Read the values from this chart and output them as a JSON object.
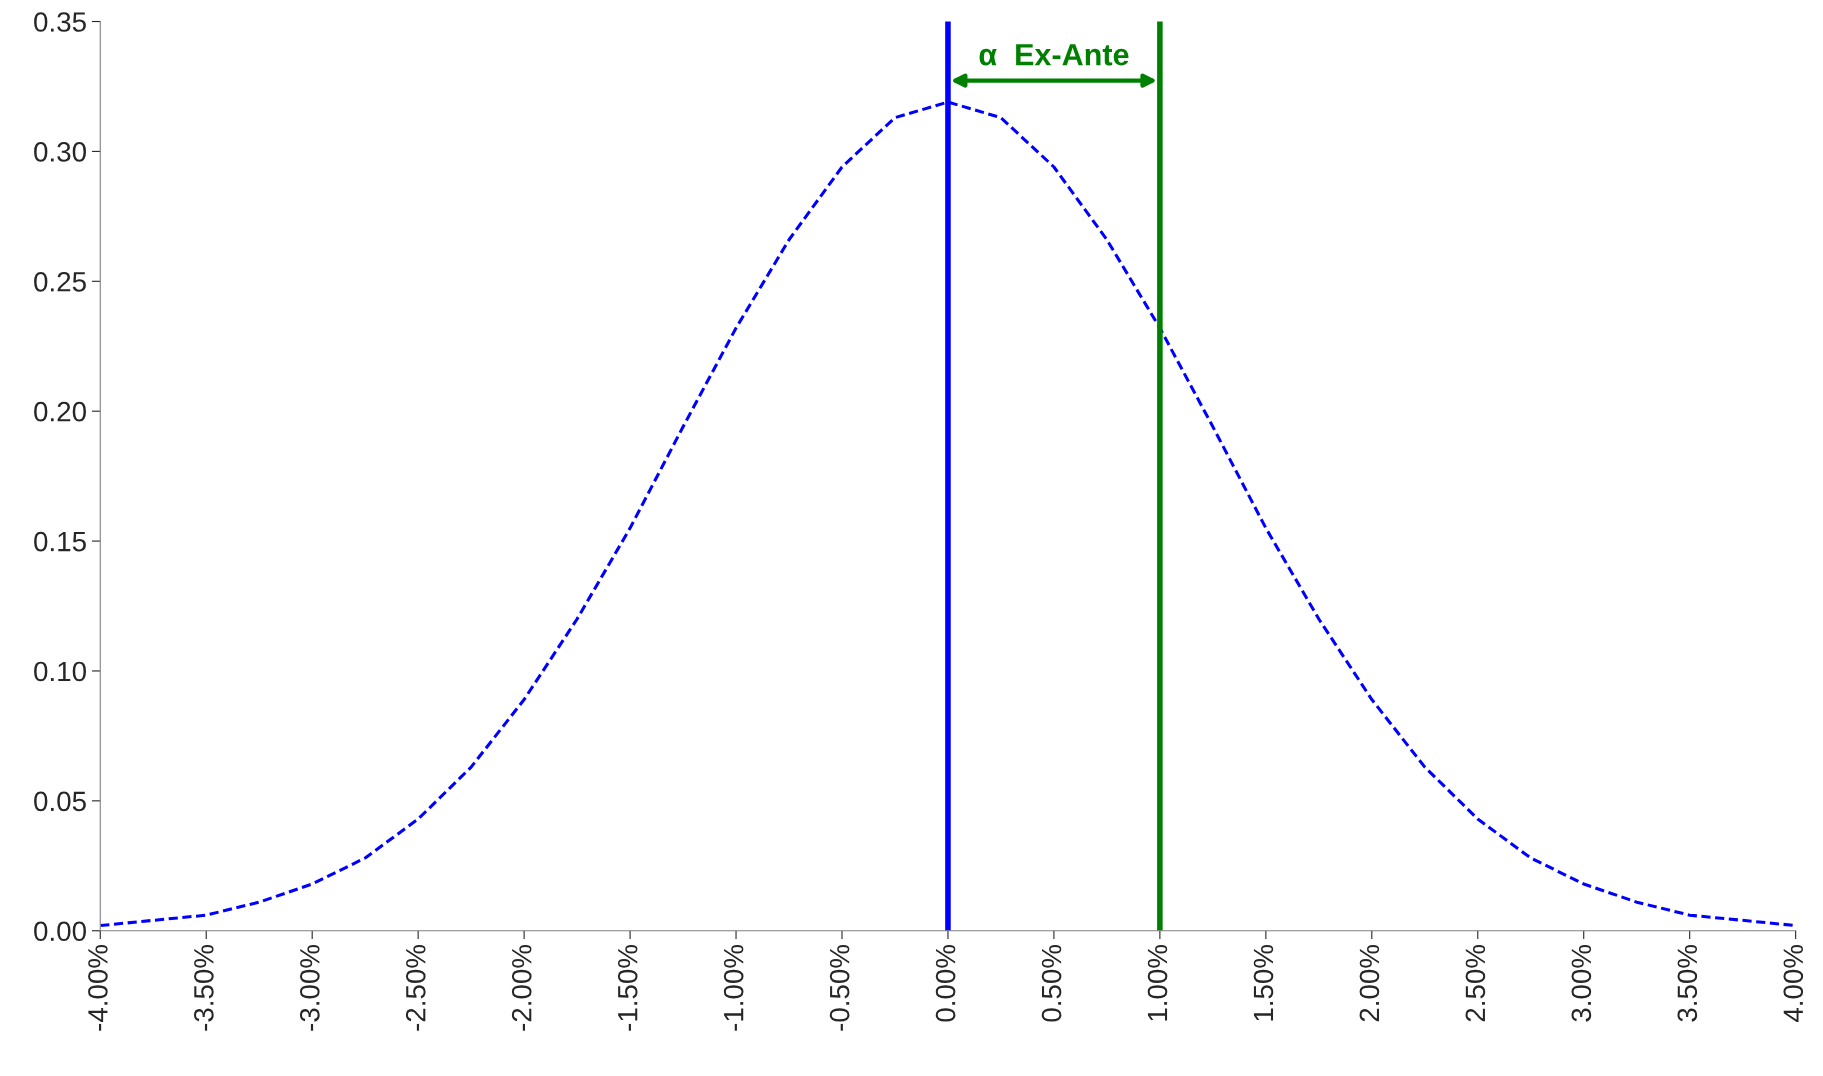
{
  "chart_data": {
    "type": "line",
    "x": [
      -4,
      -3.75,
      -3.5,
      -3.25,
      -3,
      -2.75,
      -2.5,
      -2.25,
      -2,
      -1.75,
      -1.5,
      -1.25,
      -1,
      -0.75,
      -0.5,
      -0.25,
      0,
      0.25,
      0.5,
      0.75,
      1,
      1.25,
      1.5,
      1.75,
      2,
      2.25,
      2.5,
      2.75,
      3,
      3.25,
      3.5,
      3.75,
      4
    ],
    "series": [
      {
        "color": "#0000ff",
        "values": [
          0.002,
          0.004,
          0.006,
          0.011,
          0.018,
          0.028,
          0.043,
          0.063,
          0.089,
          0.12,
          0.155,
          0.194,
          0.232,
          0.266,
          0.294,
          0.313,
          0.319,
          0.313,
          0.294,
          0.266,
          0.232,
          0.194,
          0.155,
          0.12,
          0.089,
          0.063,
          0.043,
          0.028,
          0.018,
          0.011,
          0.006,
          0.004,
          0.002
        ]
      }
    ],
    "line_style": "dashed",
    "marker": "none",
    "grid": false,
    "legend": false,
    "xlim": [
      -4,
      4
    ],
    "xticks": [
      {
        "value": -4,
        "label": "-4.00%"
      },
      {
        "value": -3.5,
        "label": "-3.50%"
      },
      {
        "value": -3,
        "label": "-3.00%"
      },
      {
        "value": -2.5,
        "label": "-2.50%"
      },
      {
        "value": -2,
        "label": "-2.00%"
      },
      {
        "value": -1.5,
        "label": "-1.50%"
      },
      {
        "value": -1,
        "label": "-1.00%"
      },
      {
        "value": -0.5,
        "label": "-0.50%"
      },
      {
        "value": 0,
        "label": "0.00%"
      },
      {
        "value": 0.5,
        "label": "0.50%"
      },
      {
        "value": 1,
        "label": "1.00%"
      },
      {
        "value": 1.5,
        "label": "1.50%"
      },
      {
        "value": 2,
        "label": "2.00%"
      },
      {
        "value": 2.5,
        "label": "2.50%"
      },
      {
        "value": 3,
        "label": "3.00%"
      },
      {
        "value": 3.5,
        "label": "3.50%"
      },
      {
        "value": 4,
        "label": "4.00%"
      }
    ],
    "ylim": [
      0,
      0.35
    ],
    "yticks": [
      {
        "value": 0,
        "label": "0.00"
      },
      {
        "value": 0.05,
        "label": "0.05"
      },
      {
        "value": 0.1,
        "label": "0.10"
      },
      {
        "value": 0.15,
        "label": "0.15"
      },
      {
        "value": 0.2,
        "label": "0.20"
      },
      {
        "value": 0.25,
        "label": "0.25"
      },
      {
        "value": 0.3,
        "label": "0.30"
      },
      {
        "value": 0.35,
        "label": "0.35"
      }
    ],
    "ref_lines": [
      {
        "axis": "x",
        "value": 0,
        "color": "#0000ff"
      },
      {
        "axis": "x",
        "value": 1,
        "color": "#008000"
      }
    ],
    "annotations": [
      "α  Ex-Ante"
    ]
  }
}
